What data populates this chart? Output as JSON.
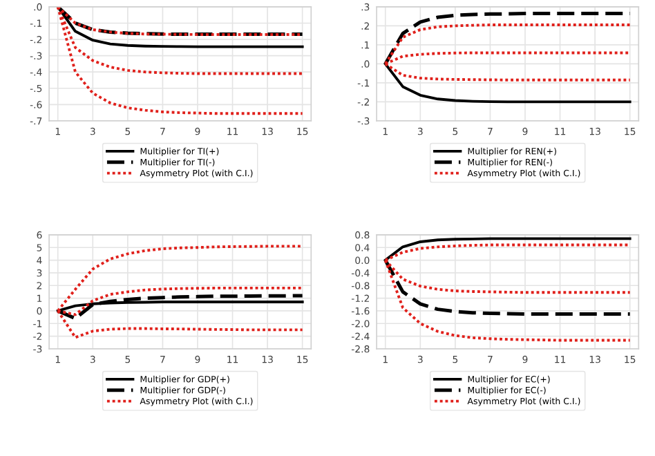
{
  "chart_data": [
    {
      "type": "line",
      "x": [
        1,
        2,
        3,
        4,
        5,
        6,
        7,
        8,
        9,
        10,
        11,
        12,
        13,
        14,
        15
      ],
      "xlim": [
        0.5,
        15.5
      ],
      "xticks": [
        1,
        3,
        5,
        7,
        9,
        11,
        13,
        15
      ],
      "ylim": [
        -0.7,
        0.0
      ],
      "yticks": [
        {
          "value": 0.0,
          "label": ".0"
        },
        {
          "value": -0.1,
          "label": "-.1"
        },
        {
          "value": -0.2,
          "label": "-.2"
        },
        {
          "value": -0.3,
          "label": "-.3"
        },
        {
          "value": -0.4,
          "label": "-.4"
        },
        {
          "value": -0.5,
          "label": "-.5"
        },
        {
          "value": -0.6,
          "label": "-.6"
        },
        {
          "value": -0.7,
          "label": "-.7"
        }
      ],
      "grid": true,
      "legend": "bottom",
      "marker": "none",
      "series": [
        {
          "name": "Multiplier for TI(+)",
          "color": "#000000",
          "line_style": "solid",
          "values": [
            0,
            -0.15,
            -0.205,
            -0.228,
            -0.237,
            -0.241,
            -0.243,
            -0.244,
            -0.245,
            -0.245,
            -0.245,
            -0.245,
            -0.245,
            -0.245,
            -0.245
          ]
        },
        {
          "name": "Multiplier for TI(-)",
          "color": "#000000",
          "line_style": "dashed",
          "values": [
            0,
            -0.1,
            -0.14,
            -0.155,
            -0.162,
            -0.165,
            -0.167,
            -0.168,
            -0.168,
            -0.168,
            -0.168,
            -0.168,
            -0.168,
            -0.168,
            -0.168
          ]
        },
        {
          "name": "Asymmetry Plot (with C.I.)",
          "color": "#e0201b",
          "line_style": "dotted",
          "values": [
            0,
            -0.1,
            -0.14,
            -0.155,
            -0.163,
            -0.167,
            -0.168,
            -0.169,
            -0.17,
            -0.17,
            -0.17,
            -0.17,
            -0.17,
            -0.17,
            -0.17
          ]
        },
        {
          "color": "#e0201b",
          "line_style": "dotted",
          "values": [
            0,
            -0.25,
            -0.33,
            -0.37,
            -0.39,
            -0.4,
            -0.405,
            -0.408,
            -0.41,
            -0.41,
            -0.41,
            -0.41,
            -0.41,
            -0.41,
            -0.41
          ]
        },
        {
          "color": "#e0201b",
          "line_style": "dotted",
          "values": [
            0,
            -0.4,
            -0.53,
            -0.59,
            -0.62,
            -0.635,
            -0.645,
            -0.65,
            -0.652,
            -0.655,
            -0.655,
            -0.655,
            -0.655,
            -0.655,
            -0.655
          ]
        }
      ]
    },
    {
      "type": "line",
      "x": [
        1,
        2,
        3,
        4,
        5,
        6,
        7,
        8,
        9,
        10,
        11,
        12,
        13,
        14,
        15
      ],
      "xlim": [
        0.5,
        15.5
      ],
      "xticks": [
        1,
        3,
        5,
        7,
        9,
        11,
        13,
        15
      ],
      "ylim": [
        -0.3,
        0.3
      ],
      "yticks": [
        {
          "value": 0.3,
          "label": ".3"
        },
        {
          "value": 0.2,
          "label": ".2"
        },
        {
          "value": 0.1,
          "label": ".1"
        },
        {
          "value": 0.0,
          "label": ".0"
        },
        {
          "value": -0.1,
          "label": "-.1"
        },
        {
          "value": -0.2,
          "label": "-.2"
        },
        {
          "value": -0.3,
          "label": "-.3"
        }
      ],
      "grid": true,
      "legend": "bottom",
      "marker": "none",
      "series": [
        {
          "name": "Multiplier for REN(+)",
          "color": "#000000",
          "line_style": "solid",
          "values": [
            0,
            -0.12,
            -0.165,
            -0.185,
            -0.193,
            -0.197,
            -0.199,
            -0.2,
            -0.2,
            -0.2,
            -0.2,
            -0.2,
            -0.2,
            -0.2,
            -0.2
          ]
        },
        {
          "name": "Multiplier for REN(-)",
          "color": "#000000",
          "line_style": "dashed",
          "values": [
            0,
            0.16,
            0.22,
            0.245,
            0.255,
            0.26,
            0.262,
            0.263,
            0.265,
            0.265,
            0.265,
            0.265,
            0.265,
            0.265,
            0.265
          ]
        },
        {
          "name": "Asymmetry Plot (with C.I.)",
          "color": "#e0201b",
          "line_style": "dotted",
          "values": [
            0,
            0.14,
            0.18,
            0.195,
            0.2,
            0.203,
            0.205,
            0.205,
            0.205,
            0.205,
            0.205,
            0.205,
            0.205,
            0.205,
            0.205
          ]
        },
        {
          "color": "#e0201b",
          "line_style": "dotted",
          "values": [
            0,
            0.04,
            0.05,
            0.055,
            0.057,
            0.058,
            0.058,
            0.058,
            0.058,
            0.058,
            0.058,
            0.058,
            0.058,
            0.058,
            0.058
          ]
        },
        {
          "color": "#e0201b",
          "line_style": "dotted",
          "values": [
            0,
            -0.06,
            -0.075,
            -0.08,
            -0.082,
            -0.083,
            -0.084,
            -0.085,
            -0.085,
            -0.085,
            -0.085,
            -0.085,
            -0.085,
            -0.085,
            -0.085
          ]
        }
      ]
    },
    {
      "type": "line",
      "x": [
        1,
        2,
        3,
        4,
        5,
        6,
        7,
        8,
        9,
        10,
        11,
        12,
        13,
        14,
        15
      ],
      "xlim": [
        0.5,
        15.5
      ],
      "xticks": [
        1,
        3,
        5,
        7,
        9,
        11,
        13,
        15
      ],
      "ylim": [
        -3,
        6
      ],
      "yticks": [
        6,
        5,
        4,
        3,
        2,
        1,
        0,
        -1,
        -2,
        -3
      ],
      "grid": true,
      "legend": "bottom",
      "marker": "none",
      "series": [
        {
          "name": "Multiplier for GDP(+)",
          "color": "#000000",
          "line_style": "solid",
          "values": [
            0,
            0.4,
            0.55,
            0.62,
            0.66,
            0.68,
            0.7,
            0.7,
            0.7,
            0.7,
            0.7,
            0.7,
            0.7,
            0.7,
            0.7
          ]
        },
        {
          "name": "Multiplier for GDP(-)",
          "color": "#000000",
          "line_style": "dashed",
          "values": [
            0,
            -0.6,
            0.5,
            0.75,
            0.9,
            1.0,
            1.05,
            1.1,
            1.12,
            1.15,
            1.15,
            1.17,
            1.18,
            1.18,
            1.2
          ]
        },
        {
          "name": "Asymmetry Plot (with C.I.)",
          "color": "#e0201b",
          "line_style": "dotted",
          "values": [
            0,
            1.7,
            3.3,
            4.1,
            4.5,
            4.75,
            4.9,
            4.97,
            5.0,
            5.05,
            5.07,
            5.08,
            5.1,
            5.1,
            5.1
          ]
        },
        {
          "color": "#e0201b",
          "line_style": "dotted",
          "values": [
            0,
            -0.3,
            0.8,
            1.3,
            1.5,
            1.65,
            1.72,
            1.76,
            1.78,
            1.8,
            1.8,
            1.8,
            1.8,
            1.8,
            1.8
          ]
        },
        {
          "color": "#e0201b",
          "line_style": "dotted",
          "values": [
            0,
            -2.1,
            -1.6,
            -1.45,
            -1.4,
            -1.4,
            -1.42,
            -1.43,
            -1.45,
            -1.47,
            -1.48,
            -1.5,
            -1.5,
            -1.5,
            -1.5
          ]
        }
      ]
    },
    {
      "type": "line",
      "x": [
        1,
        2,
        3,
        4,
        5,
        6,
        7,
        8,
        9,
        10,
        11,
        12,
        13,
        14,
        15
      ],
      "xlim": [
        0.5,
        15.5
      ],
      "xticks": [
        1,
        3,
        5,
        7,
        9,
        11,
        13,
        15
      ],
      "ylim": [
        -2.8,
        0.8
      ],
      "yticks": [
        {
          "value": 0.8,
          "label": "0.8"
        },
        {
          "value": 0.4,
          "label": "0.4"
        },
        {
          "value": 0.0,
          "label": "0.0"
        },
        {
          "value": -0.4,
          "label": "-0.4"
        },
        {
          "value": -0.8,
          "label": "-0.8"
        },
        {
          "value": -1.2,
          "label": "-1.2"
        },
        {
          "value": -1.6,
          "label": "-1.6"
        },
        {
          "value": -2.0,
          "label": "-2.0"
        },
        {
          "value": -2.4,
          "label": "-2.4"
        },
        {
          "value": -2.8,
          "label": "-2.8"
        }
      ],
      "grid": true,
      "legend": "bottom",
      "marker": "none",
      "series": [
        {
          "name": "Multiplier for EC(+)",
          "color": "#000000",
          "line_style": "solid",
          "values": [
            0,
            0.42,
            0.58,
            0.64,
            0.66,
            0.67,
            0.68,
            0.68,
            0.68,
            0.68,
            0.68,
            0.68,
            0.68,
            0.68,
            0.68
          ]
        },
        {
          "name": "Multiplier for EC(-)",
          "color": "#000000",
          "line_style": "dashed",
          "values": [
            0,
            -1.0,
            -1.38,
            -1.55,
            -1.62,
            -1.66,
            -1.68,
            -1.69,
            -1.7,
            -1.7,
            -1.7,
            -1.7,
            -1.7,
            -1.7,
            -1.7
          ]
        },
        {
          "name": "Asymmetry Plot (with C.I.)",
          "color": "#e0201b",
          "line_style": "dotted",
          "values": [
            0,
            0.25,
            0.37,
            0.42,
            0.45,
            0.47,
            0.48,
            0.48,
            0.48,
            0.48,
            0.48,
            0.48,
            0.48,
            0.48,
            0.48
          ]
        },
        {
          "color": "#e0201b",
          "line_style": "dotted",
          "values": [
            0,
            -0.6,
            -0.82,
            -0.92,
            -0.97,
            -0.99,
            -1.0,
            -1.01,
            -1.02,
            -1.02,
            -1.02,
            -1.02,
            -1.02,
            -1.02,
            -1.02
          ]
        },
        {
          "color": "#e0201b",
          "line_style": "dotted",
          "values": [
            0,
            -1.5,
            -2.0,
            -2.25,
            -2.38,
            -2.45,
            -2.48,
            -2.5,
            -2.51,
            -2.52,
            -2.53,
            -2.53,
            -2.53,
            -2.53,
            -2.53
          ]
        }
      ]
    }
  ]
}
